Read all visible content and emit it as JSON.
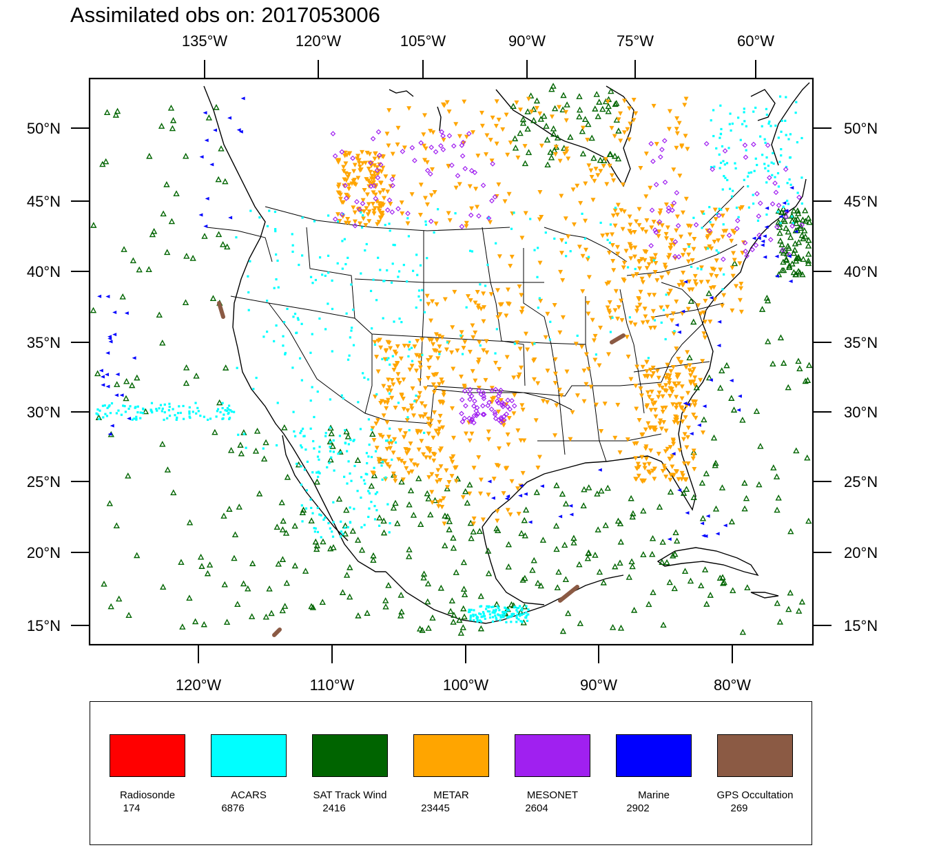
{
  "title": "Assimilated obs on: 2017053006",
  "top_axis_labels": [
    "135°W",
    "120°W",
    "105°W",
    "90°W",
    "75°W",
    "60°W"
  ],
  "bottom_axis_labels": [
    "120°W",
    "110°W",
    "100°W",
    "90°W",
    "80°W"
  ],
  "left_axis_labels": [
    "50°N",
    "45°N",
    "40°N",
    "35°N",
    "30°N",
    "25°N",
    "20°N",
    "15°N"
  ],
  "right_axis_labels": [
    "50°N",
    "45°N",
    "40°N",
    "35°N",
    "30°N",
    "25°N",
    "20°N",
    "15°N"
  ],
  "legend": [
    {
      "label": "Radiosonde",
      "count": "174",
      "color": "#ff0000"
    },
    {
      "label": "ACARS",
      "count": "6876",
      "color": "#00ffff"
    },
    {
      "label": "SAT Track Wind",
      "count": "2416",
      "color": "#006400"
    },
    {
      "label": "METAR",
      "count": "23445",
      "color": "#ffa500"
    },
    {
      "label": "MESONET",
      "count": "2604",
      "color": "#a020f0"
    },
    {
      "label": "Marine",
      "count": "2902",
      "color": "#0000ff"
    },
    {
      "label": "GPS Occultation",
      "count": "269",
      "color": "#8b5a44"
    }
  ]
}
